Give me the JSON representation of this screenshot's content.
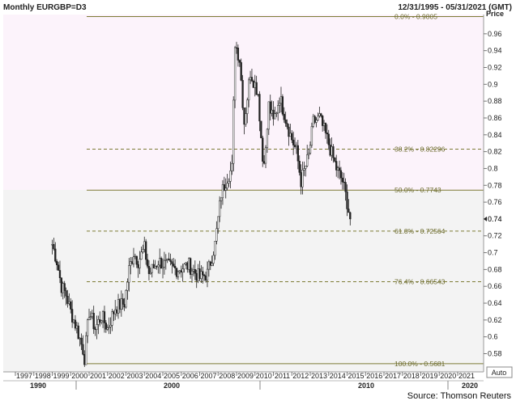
{
  "header": {
    "title": "Monthly EURGBP=D3",
    "range": "12/31/1995 - 05/31/2021 (GMT)"
  },
  "source": "Source: Thomson Reuters",
  "auto_button": "Auto",
  "chart_data": {
    "type": "candlestick",
    "title": "Monthly EURGBP=D3",
    "ylabel": "Price",
    "ylim": [
      0.56,
      0.98
    ],
    "yticks": [
      "0.58",
      "0.6",
      "0.62",
      "0.64",
      "0.66",
      "0.68",
      "0.7",
      "0.72",
      "0.74",
      "0.76",
      "0.78",
      "0.8",
      "0.82",
      "0.84",
      "0.86",
      "0.88",
      "0.9",
      "0.92",
      "0.94",
      "0.96"
    ],
    "last_price": "0.74",
    "x_tick_labels": [
      "1997",
      "1998",
      "1999",
      "2000",
      "2001",
      "2002",
      "2003",
      "2004",
      "2005",
      "2006",
      "2007",
      "2008",
      "2009",
      "2010",
      "2011",
      "2012",
      "2013",
      "2014",
      "2015",
      "2016",
      "2017",
      "2018",
      "2019",
      "2020",
      "2021"
    ],
    "era_labels": [
      "1990",
      "2000",
      "2010",
      "2020"
    ],
    "fib_levels": [
      {
        "label": "0.0% - 0.9805",
        "value": 0.9805
      },
      {
        "label": "38.2% - 0.82296",
        "value": 0.82296
      },
      {
        "label": "50.0% - 0.7743",
        "value": 0.7743
      },
      {
        "label": "61.8% - 0.72564",
        "value": 0.72564
      },
      {
        "label": "76.4% - 0.66543",
        "value": 0.66543
      },
      {
        "label": "100.0% - 0.5681",
        "value": 0.5681
      }
    ],
    "anchors": [
      [
        "1999-01",
        0.71
      ],
      [
        "1999-04",
        0.69
      ],
      [
        "1999-07",
        0.66
      ],
      [
        "1999-10",
        0.65
      ],
      [
        "2000-01",
        0.63
      ],
      [
        "2000-05",
        0.61
      ],
      [
        "2000-09",
        0.585
      ],
      [
        "2000-10",
        0.575
      ],
      [
        "2001-01",
        0.63
      ],
      [
        "2001-05",
        0.61
      ],
      [
        "2001-09",
        0.625
      ],
      [
        "2002-01",
        0.61
      ],
      [
        "2002-06",
        0.635
      ],
      [
        "2002-12",
        0.64
      ],
      [
        "2003-03",
        0.68
      ],
      [
        "2003-06",
        0.7
      ],
      [
        "2003-09",
        0.69
      ],
      [
        "2004-01",
        0.705
      ],
      [
        "2004-04",
        0.675
      ],
      [
        "2004-10",
        0.69
      ],
      [
        "2005-03",
        0.685
      ],
      [
        "2005-10",
        0.68
      ],
      [
        "2006-06",
        0.685
      ],
      [
        "2007-01",
        0.67
      ],
      [
        "2007-06",
        0.675
      ],
      [
        "2007-11",
        0.71
      ],
      [
        "2008-03",
        0.77
      ],
      [
        "2008-07",
        0.79
      ],
      [
        "2008-10",
        0.8
      ],
      [
        "2008-12",
        0.95
      ],
      [
        "2009-03",
        0.93
      ],
      [
        "2009-06",
        0.855
      ],
      [
        "2009-10",
        0.915
      ],
      [
        "2010-03",
        0.89
      ],
      [
        "2010-06",
        0.81
      ],
      [
        "2010-08",
        0.82
      ],
      [
        "2010-10",
        0.875
      ],
      [
        "2011-01",
        0.855
      ],
      [
        "2011-05",
        0.885
      ],
      [
        "2011-12",
        0.84
      ],
      [
        "2012-04",
        0.82
      ],
      [
        "2012-07",
        0.785
      ],
      [
        "2012-12",
        0.815
      ],
      [
        "2013-03",
        0.855
      ],
      [
        "2013-07",
        0.86
      ],
      [
        "2013-12",
        0.835
      ],
      [
        "2014-06",
        0.8
      ],
      [
        "2014-10",
        0.785
      ],
      [
        "2015-01",
        0.76
      ],
      [
        "2015-03",
        0.74
      ]
    ]
  }
}
